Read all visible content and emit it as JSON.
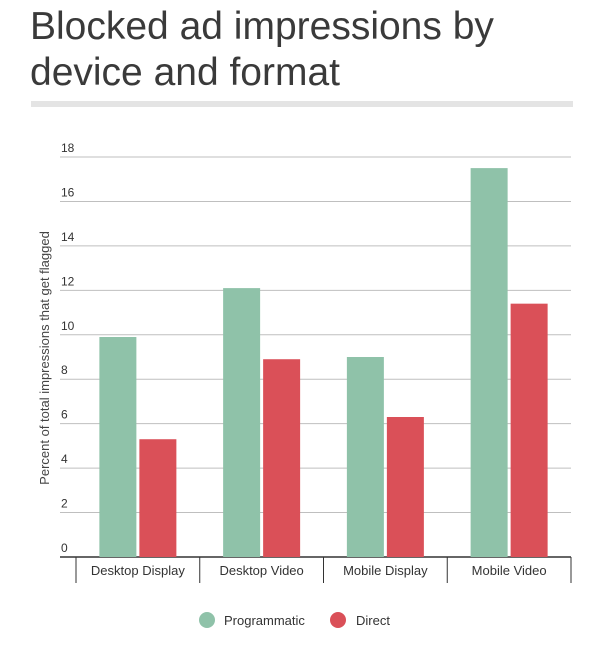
{
  "chart_data": {
    "type": "bar",
    "title": "Blocked ad impressions by device and format",
    "xlabel": "",
    "ylabel": "Percent of total impressions that get flagged",
    "categories": [
      "Desktop Display",
      "Desktop Video",
      "Mobile Display",
      "Mobile Video"
    ],
    "series": [
      {
        "name": "Programmatic",
        "color": "#8fc2a9",
        "values": [
          9.9,
          12.1,
          9.0,
          17.5
        ]
      },
      {
        "name": "Direct",
        "color": "#da5058",
        "values": [
          5.3,
          8.9,
          6.3,
          11.4
        ]
      }
    ],
    "ylim": [
      0,
      18
    ],
    "yticks": [
      0,
      2,
      4,
      6,
      8,
      10,
      12,
      14,
      16,
      18
    ],
    "grid": true,
    "legend_position": "bottom"
  }
}
